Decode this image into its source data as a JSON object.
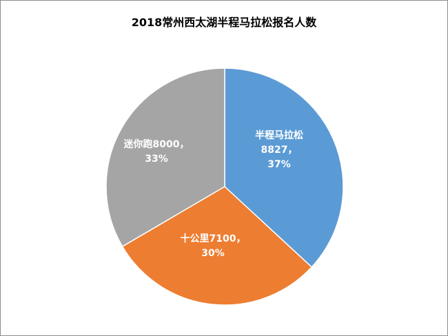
{
  "chart_data": {
    "type": "pie",
    "title": "2018常州西太湖半程马拉松报名人数",
    "colors": [
      "#5b9bd5",
      "#ed7d31",
      "#a5a5a5"
    ],
    "slices": [
      {
        "label": "半程马拉松",
        "value": 8827,
        "percent": "37%",
        "label_lines": [
          "半程马拉松",
          "8827，",
          "37%"
        ]
      },
      {
        "label": "十公里",
        "value": 7100,
        "percent": "30%",
        "label_lines": [
          "十公里7100，",
          "30%"
        ]
      },
      {
        "label": "迷你跑",
        "value": 8000,
        "percent": "33%",
        "label_lines": [
          "迷你跑8000，",
          "33%"
        ]
      }
    ],
    "legend": "none",
    "grid": false
  }
}
